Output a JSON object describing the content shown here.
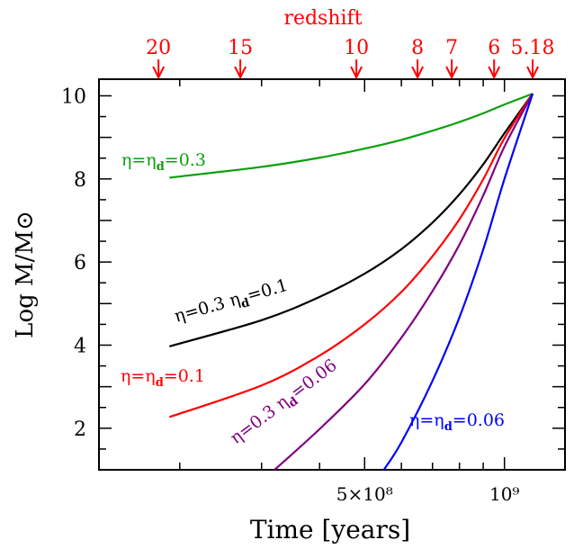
{
  "chart_data": {
    "type": "line",
    "title": "",
    "xlabel": "Time [years]",
    "ylabel": "Log M/M⊙",
    "x_scale": "log",
    "xlim": [
      134000000.0,
      1350000000.0
    ],
    "ylim": [
      1.0,
      10.4
    ],
    "x_tick_labels": [
      {
        "value": 500000000.0,
        "label": "5×10⁸"
      },
      {
        "value": 1000000000.0,
        "label": "10⁹"
      }
    ],
    "y_tick_labels": [
      {
        "value": 2,
        "label": "2"
      },
      {
        "value": 4,
        "label": "4"
      },
      {
        "value": 6,
        "label": "6"
      },
      {
        "value": 8,
        "label": "8"
      },
      {
        "value": 10,
        "label": "10"
      }
    ],
    "top_axis": {
      "label": "redshift",
      "color": "#ff0000",
      "ticks": [
        {
          "label": "20",
          "time": 180000000.0
        },
        {
          "label": "15",
          "time": 270000000.0
        },
        {
          "label": "10",
          "time": 480000000.0
        },
        {
          "label": "8",
          "time": 650000000.0
        },
        {
          "label": "7",
          "time": 770000000.0
        },
        {
          "label": "6",
          "time": 950000000.0
        },
        {
          "label": "5.18",
          "time": 1150000000.0
        }
      ]
    },
    "series": [
      {
        "label_parts": [
          "η=η",
          "d",
          "=0.3"
        ],
        "color": "#0aa00a",
        "label_angle": 0,
        "x": [
          190000000.0,
          300000000.0,
          400000000.0,
          500000000.0,
          600000000.0,
          700000000.0,
          800000000.0,
          900000000.0,
          1000000000.0,
          1150000000.0
        ],
        "y": [
          8.03,
          8.29,
          8.51,
          8.73,
          8.94,
          9.16,
          9.37,
          9.58,
          9.79,
          10.05
        ]
      },
      {
        "label_parts": [
          "η=0.3 η",
          "d",
          "=0.1"
        ],
        "color": "#000000",
        "label_angle": -16,
        "x": [
          190000000.0,
          300000000.0,
          400000000.0,
          500000000.0,
          600000000.0,
          700000000.0,
          800000000.0,
          900000000.0,
          1000000000.0,
          1150000000.0
        ],
        "y": [
          3.97,
          4.6,
          5.16,
          5.72,
          6.31,
          6.95,
          7.63,
          8.35,
          9.1,
          10.05
        ]
      },
      {
        "label_parts": [
          "η=η",
          "d",
          "=0.1"
        ],
        "color": "#ff0000",
        "label_angle": 0,
        "x": [
          190000000.0,
          300000000.0,
          400000000.0,
          500000000.0,
          600000000.0,
          700000000.0,
          800000000.0,
          900000000.0,
          1000000000.0,
          1150000000.0
        ],
        "y": [
          2.27,
          3.03,
          3.75,
          4.5,
          5.28,
          6.14,
          7.03,
          7.99,
          8.98,
          10.05
        ]
      },
      {
        "label_parts": [
          "η=0.3 η",
          "d",
          "=0.06"
        ],
        "color": "#800080",
        "label_angle": -37,
        "x": [
          320000000.0,
          400000000.0,
          500000000.0,
          600000000.0,
          700000000.0,
          800000000.0,
          900000000.0,
          1000000000.0,
          1150000000.0
        ],
        "y": [
          1.0,
          1.98,
          3.06,
          4.18,
          5.3,
          6.42,
          7.6,
          8.78,
          10.05
        ]
      },
      {
        "label_parts": [
          "η=η",
          "d",
          "=0.06"
        ],
        "color": "#0000ff",
        "label_angle": 0,
        "x": [
          550000000.0,
          600000000.0,
          700000000.0,
          800000000.0,
          900000000.0,
          1000000000.0,
          1150000000.0
        ],
        "y": [
          1.0,
          1.66,
          3.14,
          4.67,
          6.3,
          8.0,
          10.05
        ]
      }
    ],
    "grid": false,
    "legend": "inline labels"
  }
}
